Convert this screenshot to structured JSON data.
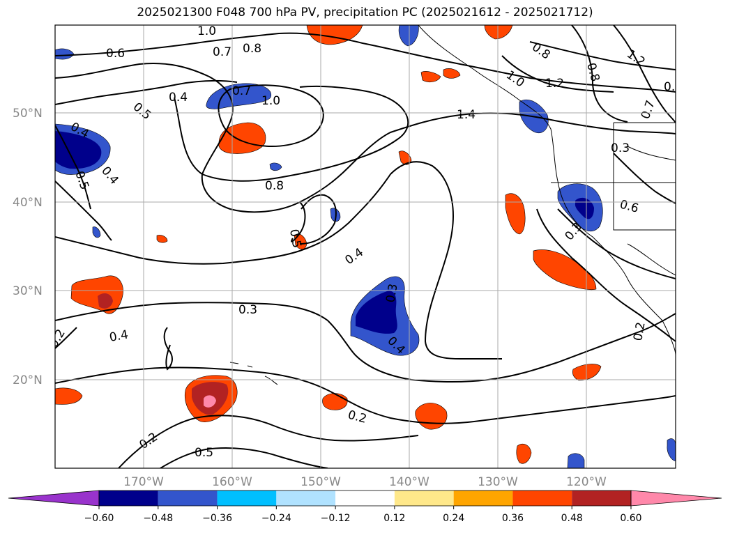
{
  "title": "2025021300 F048 700 hPa PV, precipitation PC (2025021612 - 2025021712)",
  "lat_labels": [
    "50°N",
    "40°N",
    "30°N",
    "20°N"
  ],
  "lon_labels": [
    "170°W",
    "160°W",
    "150°W",
    "140°W",
    "130°W",
    "120°W"
  ],
  "colorbar": {
    "ticks": [
      "−0.60",
      "−0.48",
      "−0.36",
      "−0.24",
      "−0.12",
      "0.12",
      "0.24",
      "0.36",
      "0.48",
      "0.60"
    ],
    "colors": [
      "#9933cc",
      "#00008b",
      "#3355cc",
      "#00bfff",
      "#b0e2ff",
      "#ffffff",
      "#ffe88a",
      "#ffa500",
      "#ff4500",
      "#b22222",
      "#ff88aa"
    ]
  },
  "contour_labels": [
    "1.0",
    "0.6",
    "0.7",
    "0.8",
    "0.5",
    "0.4",
    "0.7",
    "1.0",
    "0.4",
    "0.5",
    "0.4",
    "0.8",
    "0.5",
    "0.4",
    "0.3",
    "0.3",
    "0.4",
    "0.2",
    "0.2",
    "0.2",
    "0.5",
    "1.4",
    "0.8",
    "1.0",
    "1.2",
    "0.8",
    "1.2",
    "0.7",
    "0.3",
    "0.6",
    "0.3",
    "0.2",
    "0.3",
    "0.4"
  ]
}
